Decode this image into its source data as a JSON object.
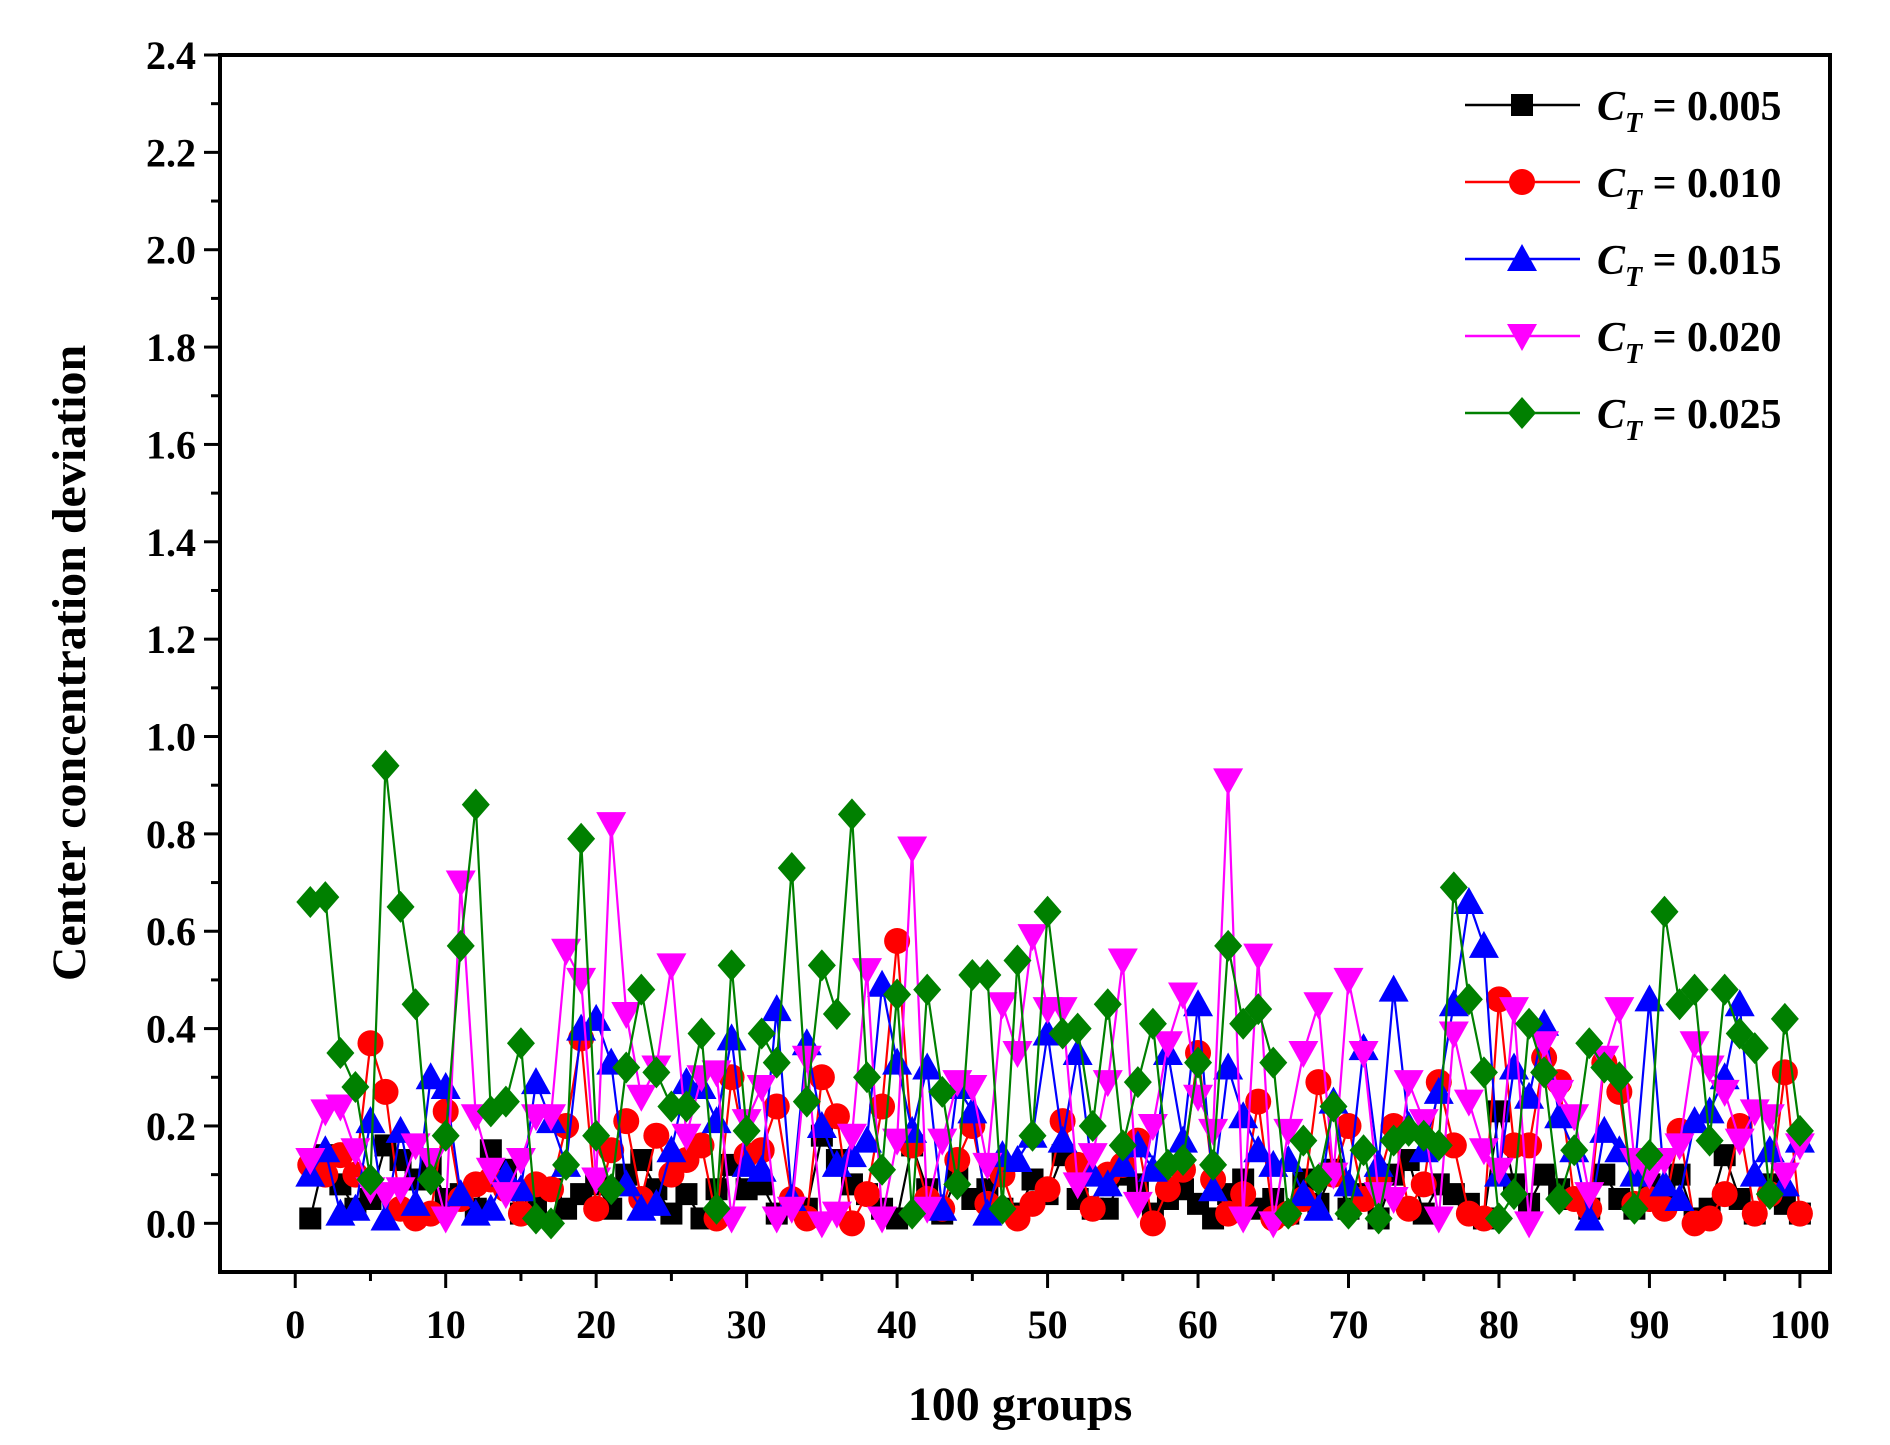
{
  "chart_data": {
    "type": "line",
    "xlabel": "100 groups",
    "ylabel": "Center concentration deviation",
    "xlim": [
      -5,
      102
    ],
    "ylim": [
      -0.1,
      2.4
    ],
    "xticks": [
      "0",
      "10",
      "20",
      "30",
      "40",
      "50",
      "60",
      "70",
      "80",
      "90",
      "100"
    ],
    "yticks": [
      "0.0",
      "0.2",
      "0.4",
      "0.6",
      "0.8",
      "1.0",
      "1.2",
      "1.4",
      "1.6",
      "1.8",
      "2.0",
      "2.2",
      "2.4"
    ],
    "legend_position": "top-right",
    "grid": false,
    "x": [
      1,
      2,
      3,
      4,
      5,
      6,
      7,
      8,
      9,
      10,
      11,
      12,
      13,
      14,
      15,
      16,
      17,
      18,
      19,
      20,
      21,
      22,
      23,
      24,
      25,
      26,
      27,
      28,
      29,
      30,
      31,
      32,
      33,
      34,
      35,
      36,
      37,
      38,
      39,
      40,
      41,
      42,
      43,
      44,
      45,
      46,
      47,
      48,
      49,
      50,
      51,
      52,
      53,
      54,
      55,
      56,
      57,
      58,
      59,
      60,
      61,
      62,
      63,
      64,
      65,
      66,
      67,
      68,
      69,
      70,
      71,
      72,
      73,
      74,
      75,
      76,
      77,
      78,
      79,
      80,
      81,
      82,
      83,
      84,
      85,
      86,
      87,
      88,
      89,
      90,
      91,
      92,
      93,
      94,
      95,
      96,
      97,
      98,
      99,
      100
    ],
    "series": [
      {
        "legend_main": "C",
        "legend_sub": "T",
        "legend_value": " = 0.005",
        "color": "#000000",
        "marker": "square",
        "values": [
          0.01,
          0.14,
          0.08,
          0.03,
          0.05,
          0.16,
          0.13,
          0.09,
          0.12,
          0.05,
          0.06,
          0.03,
          0.15,
          0.11,
          0.02,
          0.04,
          0.07,
          0.03,
          0.06,
          0.08,
          0.03,
          0.1,
          0.13,
          0.07,
          0.02,
          0.06,
          0.01,
          0.07,
          0.12,
          0.07,
          0.08,
          0.02,
          0.04,
          0.03,
          0.18,
          0.13,
          0.08,
          0.06,
          0.03,
          0.01,
          0.16,
          0.07,
          0.02,
          0.1,
          0.05,
          0.07,
          0.03,
          0.02,
          0.09,
          0.06,
          0.14,
          0.05,
          0.03,
          0.03,
          0.1,
          0.08,
          0.02,
          0.05,
          0.07,
          0.04,
          0.01,
          0.06,
          0.09,
          0.03,
          0.05,
          0.02,
          0.09,
          0.04,
          0.11,
          0.03,
          0.06,
          0.01,
          0.1,
          0.13,
          0.02,
          0.08,
          0.06,
          0.04,
          0.01,
          0.23,
          0.08,
          0.04,
          0.1,
          0.07,
          0.05,
          0.03,
          0.1,
          0.05,
          0.03,
          0.08,
          0.07,
          0.1,
          0.01,
          0.03,
          0.14,
          0.05,
          0.02,
          0.08,
          0.04,
          0.02
        ]
      },
      {
        "legend_main": "C",
        "legend_sub": "T",
        "legend_value": " = 0.010",
        "color": "#ff0000",
        "marker": "circle",
        "values": [
          0.12,
          0.1,
          0.14,
          0.1,
          0.37,
          0.27,
          0.03,
          0.01,
          0.02,
          0.23,
          0.05,
          0.08,
          0.09,
          0.07,
          0.02,
          0.08,
          0.07,
          0.2,
          0.38,
          0.03,
          0.15,
          0.21,
          0.05,
          0.18,
          0.1,
          0.13,
          0.16,
          0.01,
          0.3,
          0.14,
          0.15,
          0.24,
          0.05,
          0.01,
          0.3,
          0.22,
          0.0,
          0.06,
          0.24,
          0.58,
          0.16,
          0.05,
          0.03,
          0.13,
          0.2,
          0.04,
          0.1,
          0.01,
          0.04,
          0.07,
          0.21,
          0.12,
          0.03,
          0.1,
          0.12,
          0.17,
          0.0,
          0.07,
          0.11,
          0.35,
          0.09,
          0.02,
          0.06,
          0.25,
          0.01,
          0.02,
          0.05,
          0.29,
          0.1,
          0.2,
          0.05,
          0.09,
          0.2,
          0.03,
          0.08,
          0.29,
          0.16,
          0.02,
          0.01,
          0.46,
          0.16,
          0.16,
          0.34,
          0.29,
          0.05,
          0.03,
          0.33,
          0.27,
          0.04,
          0.05,
          0.03,
          0.19,
          0.0,
          0.01,
          0.06,
          0.2,
          0.02,
          0.06,
          0.31,
          0.02
        ]
      },
      {
        "legend_main": "C",
        "legend_sub": "T",
        "legend_value": " = 0.015",
        "color": "#0000ff",
        "marker": "triangle-up",
        "values": [
          0.1,
          0.15,
          0.02,
          0.03,
          0.21,
          0.01,
          0.19,
          0.04,
          0.3,
          0.28,
          0.06,
          0.02,
          0.03,
          0.1,
          0.07,
          0.29,
          0.21,
          0.12,
          0.4,
          0.42,
          0.33,
          0.08,
          0.03,
          0.04,
          0.15,
          0.29,
          0.28,
          0.21,
          0.38,
          0.12,
          0.11,
          0.44,
          0.05,
          0.37,
          0.2,
          0.12,
          0.14,
          0.17,
          0.49,
          0.33,
          0.19,
          0.32,
          0.03,
          0.28,
          0.23,
          0.02,
          0.14,
          0.13,
          0.18,
          0.39,
          0.17,
          0.35,
          0.1,
          0.08,
          0.12,
          0.16,
          0.11,
          0.35,
          0.17,
          0.45,
          0.07,
          0.32,
          0.22,
          0.15,
          0.12,
          0.13,
          0.06,
          0.03,
          0.25,
          0.08,
          0.36,
          0.12,
          0.48,
          0.2,
          0.15,
          0.27,
          0.45,
          0.66,
          0.57,
          0.1,
          0.32,
          0.26,
          0.41,
          0.22,
          0.15,
          0.01,
          0.19,
          0.15,
          0.1,
          0.46,
          0.08,
          0.05,
          0.21,
          0.23,
          0.3,
          0.45,
          0.1,
          0.15,
          0.08,
          0.17
        ]
      },
      {
        "legend_main": "C",
        "legend_sub": "T",
        "legend_value": " = 0.020",
        "color": "#ff00ff",
        "marker": "triangle-down",
        "values": [
          0.13,
          0.23,
          0.24,
          0.15,
          0.07,
          0.06,
          0.07,
          0.16,
          0.13,
          0.01,
          0.7,
          0.22,
          0.11,
          0.06,
          0.13,
          0.22,
          0.22,
          0.56,
          0.5,
          0.09,
          0.82,
          0.43,
          0.26,
          0.32,
          0.53,
          0.18,
          0.3,
          0.31,
          0.01,
          0.21,
          0.28,
          0.01,
          0.03,
          0.34,
          0.0,
          0.02,
          0.18,
          0.52,
          0.01,
          0.17,
          0.77,
          0.03,
          0.17,
          0.29,
          0.28,
          0.12,
          0.45,
          0.35,
          0.59,
          0.44,
          0.44,
          0.08,
          0.14,
          0.29,
          0.54,
          0.04,
          0.2,
          0.37,
          0.47,
          0.26,
          0.19,
          0.91,
          0.01,
          0.55,
          0.0,
          0.19,
          0.35,
          0.45,
          0.1,
          0.5,
          0.35,
          0.06,
          0.05,
          0.29,
          0.21,
          0.01,
          0.39,
          0.25,
          0.15,
          0.11,
          0.44,
          0.0,
          0.37,
          0.27,
          0.22,
          0.06,
          0.34,
          0.44,
          0.13,
          0.1,
          0.13,
          0.16,
          0.37,
          0.32,
          0.27,
          0.17,
          0.23,
          0.22,
          0.1,
          0.16
        ]
      },
      {
        "legend_main": "C",
        "legend_sub": "T",
        "legend_value": " = 0.025",
        "color": "#008000",
        "marker": "diamond",
        "values": [
          0.66,
          0.67,
          0.35,
          0.28,
          0.09,
          0.94,
          0.65,
          0.45,
          0.09,
          0.18,
          0.57,
          0.86,
          0.23,
          0.25,
          0.37,
          0.01,
          0.0,
          0.12,
          0.79,
          0.18,
          0.07,
          0.32,
          0.48,
          0.31,
          0.24,
          0.24,
          0.39,
          0.03,
          0.53,
          0.19,
          0.39,
          0.33,
          0.73,
          0.25,
          0.53,
          0.43,
          0.84,
          0.3,
          0.11,
          0.47,
          0.02,
          0.48,
          0.27,
          0.08,
          0.51,
          0.51,
          0.03,
          0.54,
          0.18,
          0.64,
          0.39,
          0.4,
          0.2,
          0.45,
          0.16,
          0.29,
          0.41,
          0.12,
          0.13,
          0.33,
          0.12,
          0.57,
          0.41,
          0.44,
          0.33,
          0.02,
          0.17,
          0.09,
          0.24,
          0.02,
          0.15,
          0.01,
          0.17,
          0.19,
          0.18,
          0.16,
          0.69,
          0.46,
          0.31,
          0.01,
          0.06,
          0.41,
          0.31,
          0.05,
          0.15,
          0.37,
          0.32,
          0.3,
          0.03,
          0.14,
          0.64,
          0.45,
          0.48,
          0.17,
          0.48,
          0.39,
          0.36,
          0.06,
          0.42,
          0.19
        ]
      }
    ]
  }
}
